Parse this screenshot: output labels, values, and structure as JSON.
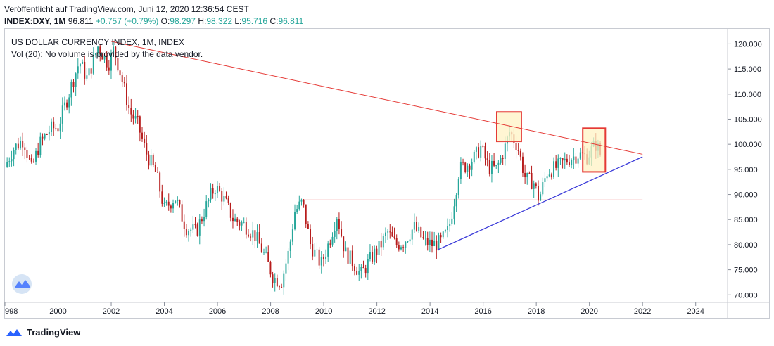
{
  "header": {
    "published": "Veröffentlicht auf TradingView.com, Juni 12, 2020 12:36:54 CEST",
    "symbol": "INDEX:DXY, 1M",
    "last": "96.811",
    "change": "+0.757 (+0.79%)",
    "o_label": "O:",
    "o_value": "98.297",
    "h_label": "H:",
    "h_value": "98.322",
    "l_label": "L:",
    "l_value": "95.716",
    "c_label": "C:",
    "c_value": "96.811"
  },
  "legend": {
    "title": "US DOLLAR CURRENCY INDEX, 1M, INDEX",
    "volume_note": "Vol (20): No volume is provided by the data vendor."
  },
  "footer": {
    "brand": "TradingView"
  },
  "chart_data": {
    "type": "candlestick",
    "title": "US DOLLAR CURRENCY INDEX, 1M, INDEX",
    "x_ticks": [
      "998",
      "2000",
      "2002",
      "2004",
      "2006",
      "2008",
      "2010",
      "2012",
      "2014",
      "2016",
      "2018",
      "2020",
      "2022",
      "2024"
    ],
    "y_ticks": [
      "70.000",
      "75.000",
      "80.000",
      "85.000",
      "90.000",
      "95.000",
      "100.000",
      "105.000",
      "110.000",
      "115.000",
      "120.000"
    ],
    "ylim": [
      68.5,
      123
    ],
    "xlim": [
      1998.0,
      2025.2
    ],
    "price_path": [
      [
        1998.0,
        95.5
      ],
      [
        1998.3,
        99.0
      ],
      [
        1998.7,
        101.0
      ],
      [
        1999.0,
        95.0
      ],
      [
        1999.3,
        100.0
      ],
      [
        1999.7,
        103.0
      ],
      [
        2000.0,
        103.5
      ],
      [
        2000.4,
        110.0
      ],
      [
        2000.8,
        116.5
      ],
      [
        2001.1,
        113.0
      ],
      [
        2001.5,
        119.5
      ],
      [
        2001.9,
        116.0
      ],
      [
        2002.1,
        119.0
      ],
      [
        2002.4,
        113.0
      ],
      [
        2002.7,
        106.5
      ],
      [
        2003.0,
        104.0
      ],
      [
        2003.3,
        98.5
      ],
      [
        2003.7,
        94.0
      ],
      [
        2004.0,
        87.0
      ],
      [
        2004.4,
        89.5
      ],
      [
        2004.8,
        83.5
      ],
      [
        2005.2,
        82.5
      ],
      [
        2005.6,
        88.0
      ],
      [
        2005.9,
        91.5
      ],
      [
        2006.2,
        89.5
      ],
      [
        2006.6,
        85.0
      ],
      [
        2007.0,
        84.0
      ],
      [
        2007.4,
        82.0
      ],
      [
        2007.8,
        77.5
      ],
      [
        2008.1,
        73.5
      ],
      [
        2008.4,
        72.5
      ],
      [
        2008.7,
        79.0
      ],
      [
        2008.9,
        86.5
      ],
      [
        2009.2,
        88.5
      ],
      [
        2009.5,
        80.0
      ],
      [
        2009.9,
        76.0
      ],
      [
        2010.2,
        80.5
      ],
      [
        2010.5,
        86.0
      ],
      [
        2010.8,
        78.5
      ],
      [
        2011.1,
        76.5
      ],
      [
        2011.4,
        74.0
      ],
      [
        2011.8,
        77.5
      ],
      [
        2012.1,
        79.5
      ],
      [
        2012.4,
        82.5
      ],
      [
        2012.7,
        80.0
      ],
      [
        2013.0,
        80.5
      ],
      [
        2013.4,
        83.5
      ],
      [
        2013.8,
        80.5
      ],
      [
        2014.1,
        80.0
      ],
      [
        2014.4,
        80.5
      ],
      [
        2014.7,
        83.0
      ],
      [
        2014.9,
        88.5
      ],
      [
        2015.1,
        95.0
      ],
      [
        2015.4,
        96.0
      ],
      [
        2015.7,
        97.5
      ],
      [
        2015.9,
        99.5
      ],
      [
        2016.2,
        95.5
      ],
      [
        2016.5,
        95.0
      ],
      [
        2016.8,
        99.0
      ],
      [
        2017.0,
        102.5
      ],
      [
        2017.3,
        99.5
      ],
      [
        2017.6,
        93.0
      ],
      [
        2017.9,
        92.5
      ],
      [
        2018.1,
        89.0
      ],
      [
        2018.4,
        94.5
      ],
      [
        2018.8,
        95.5
      ],
      [
        2019.2,
        97.0
      ],
      [
        2019.6,
        98.0
      ],
      [
        2019.9,
        97.5
      ],
      [
        2020.1,
        99.0
      ],
      [
        2020.25,
        100.0
      ],
      [
        2020.4,
        98.3
      ],
      [
        2020.45,
        96.8
      ]
    ],
    "candle_interval_years": 0.0833,
    "annotations": {
      "resistance_line": [
        [
          2002.0,
          120.5
        ],
        [
          2022.0,
          98.0
        ]
      ],
      "support_line": [
        [
          2014.3,
          79.0
        ],
        [
          2022.0,
          97.5
        ]
      ],
      "horizontal_line": [
        [
          2009.2,
          88.9
        ],
        [
          2022.0,
          88.9
        ]
      ],
      "highlight_boxes": [
        {
          "x": [
            2016.5,
            2017.45
          ],
          "y": [
            100.5,
            106.5
          ]
        },
        {
          "x": [
            2019.75,
            2020.6
          ],
          "y": [
            94.5,
            103.2
          ]
        }
      ]
    },
    "colors": {
      "up": "#26a69a",
      "down": "#b71c1c",
      "resistance": "#e53935",
      "support": "#3c3cd9",
      "box_fill": "#fff3c4",
      "box_stroke": "#e53935"
    }
  }
}
